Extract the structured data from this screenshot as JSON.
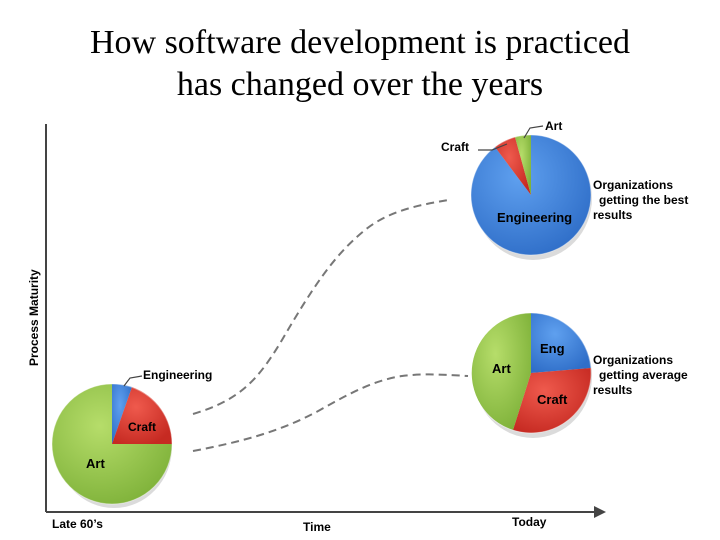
{
  "title": {
    "line1": "How software development is practiced",
    "line2": "has changed over the years"
  },
  "axes": {
    "y_label": "Process Maturity",
    "x_label": "Time",
    "x_start": "Late 60’s",
    "x_end": "Today"
  },
  "pies": {
    "early": {
      "art": "Art",
      "engineering": "Engineering",
      "craft": "Craft"
    },
    "best": {
      "art": "Art",
      "craft": "Craft",
      "engineering": "Engineering",
      "caption": [
        "Organizations",
        "getting the best",
        "results"
      ]
    },
    "average": {
      "eng": "Eng",
      "art": "Art",
      "craft": "Craft",
      "caption": [
        "Organizations",
        "getting average",
        "results"
      ]
    }
  },
  "colors": {
    "art": "#8bc34a",
    "engineering": "#3a7bd5",
    "craft": "#d9342b",
    "dash": "#777777"
  }
}
